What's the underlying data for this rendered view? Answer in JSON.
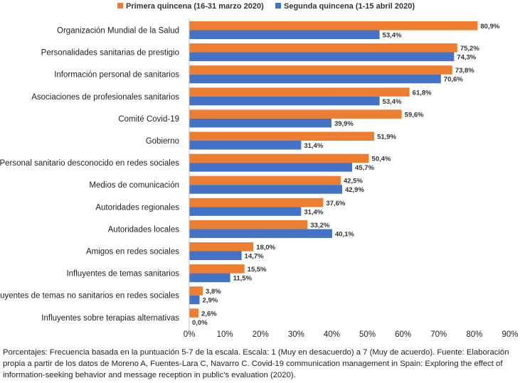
{
  "chart_data": {
    "type": "bar",
    "orientation": "horizontal",
    "categories": [
      "Organización Mundial de la Salud",
      "Personalidades sanitarias de prestigio",
      "Información personal de sanitarios",
      "Asociaciones de profesionales sanitarios",
      "Comité Covid-19",
      "Gobierno",
      "Personal sanitario desconocido en redes sociales",
      "Medios de comunicación",
      "Autoridades regionales",
      "Autoridades locales",
      "Amigos en  redes sociales",
      "Influyentes de temas sanitarios",
      "Influyentes de temas no sanitarios en redes sociales",
      "Influyentes sobre terapias alternativas"
    ],
    "series": [
      {
        "name": "Primera quincena (16-31 marzo 2020)",
        "color": "#ED7D31",
        "values": [
          80.9,
          75.2,
          73.8,
          61.8,
          59.6,
          51.9,
          50.4,
          42.5,
          37.6,
          33.2,
          18.0,
          15.5,
          3.8,
          2.6
        ],
        "labels": [
          "80,9%",
          "75,2%",
          "73,8%",
          "61,8%",
          "59,6%",
          "51,9%",
          "50,4%",
          "42,5%",
          "37,6%",
          "33,2%",
          "18,0%",
          "15,5%",
          "3,8%",
          "2,6%"
        ]
      },
      {
        "name": "Segunda quincena (1-15 abril 2020)",
        "color": "#4472C4",
        "values": [
          53.4,
          74.3,
          70.6,
          53.4,
          39.9,
          31.4,
          45.7,
          42.9,
          31.4,
          40.1,
          14.7,
          11.5,
          2.9,
          0.0
        ],
        "labels": [
          "53,4%",
          "74,3%",
          "70,6%",
          "53,4%",
          "39,9%",
          "31,4%",
          "45,7%",
          "42,9%",
          "31,4%",
          "40,1%",
          "14,7%",
          "11,5%",
          "2,9%",
          "0,0%"
        ]
      }
    ],
    "xlim": [
      0,
      90
    ],
    "xticks": [
      "0%",
      "10%",
      "20%",
      "30%",
      "40%",
      "50%",
      "60%",
      "70%",
      "80%",
      "90%"
    ],
    "legend": "top",
    "grid": false,
    "title": "",
    "xlabel": "",
    "ylabel": ""
  },
  "caption": "Porcentajes: Frecuencia basada en la puntuación 5-7 de la escala. Escala: 1 (Muy en desacuerdo) a 7 (Muy de acuerdo). Fuente: Elaboración propia a partir de los datos de Moreno A, Fuentes-Lara C, Navarro C. Covid-19 communication management in Spain: Exploring the effect of information-seeking behavior and message reception in public’s evaluation (2020)."
}
